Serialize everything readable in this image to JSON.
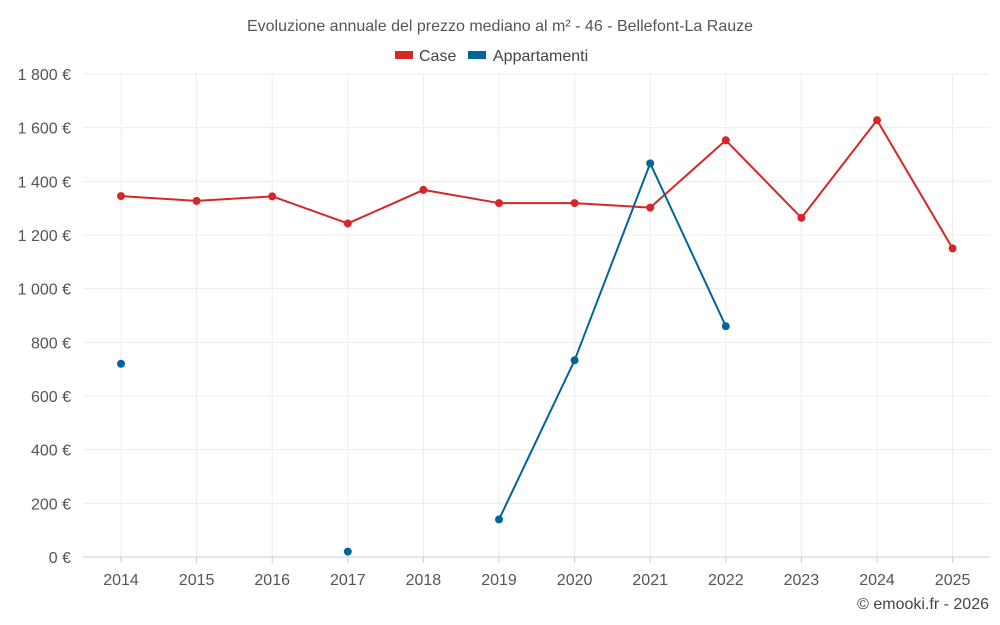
{
  "chart_data": {
    "type": "line",
    "title": "Evoluzione annuale del prezzo mediano al m² - 46 - Bellefont-La Rauze",
    "categories": [
      "2014",
      "2015",
      "2016",
      "2017",
      "2018",
      "2019",
      "2020",
      "2021",
      "2022",
      "2023",
      "2024",
      "2025"
    ],
    "series": [
      {
        "name": "Case",
        "color": "#d62728",
        "values": [
          1345,
          1327,
          1344,
          1243,
          1368,
          1319,
          1319,
          1302,
          1553,
          1264,
          1628,
          1150
        ]
      },
      {
        "name": "Appartamenti",
        "color": "#006699",
        "values": [
          720,
          null,
          null,
          20,
          null,
          140,
          733,
          1467,
          860,
          null,
          null,
          null
        ]
      }
    ],
    "y_ticks": [
      "0 €",
      "200 €",
      "400 €",
      "600 €",
      "800 €",
      "1 000 €",
      "1 200 €",
      "1 400 €",
      "1 600 €",
      "1 800 €"
    ],
    "ylim": [
      0,
      1800
    ],
    "xlabel": "",
    "ylabel": "",
    "credit": "© emooki.fr - 2026"
  }
}
